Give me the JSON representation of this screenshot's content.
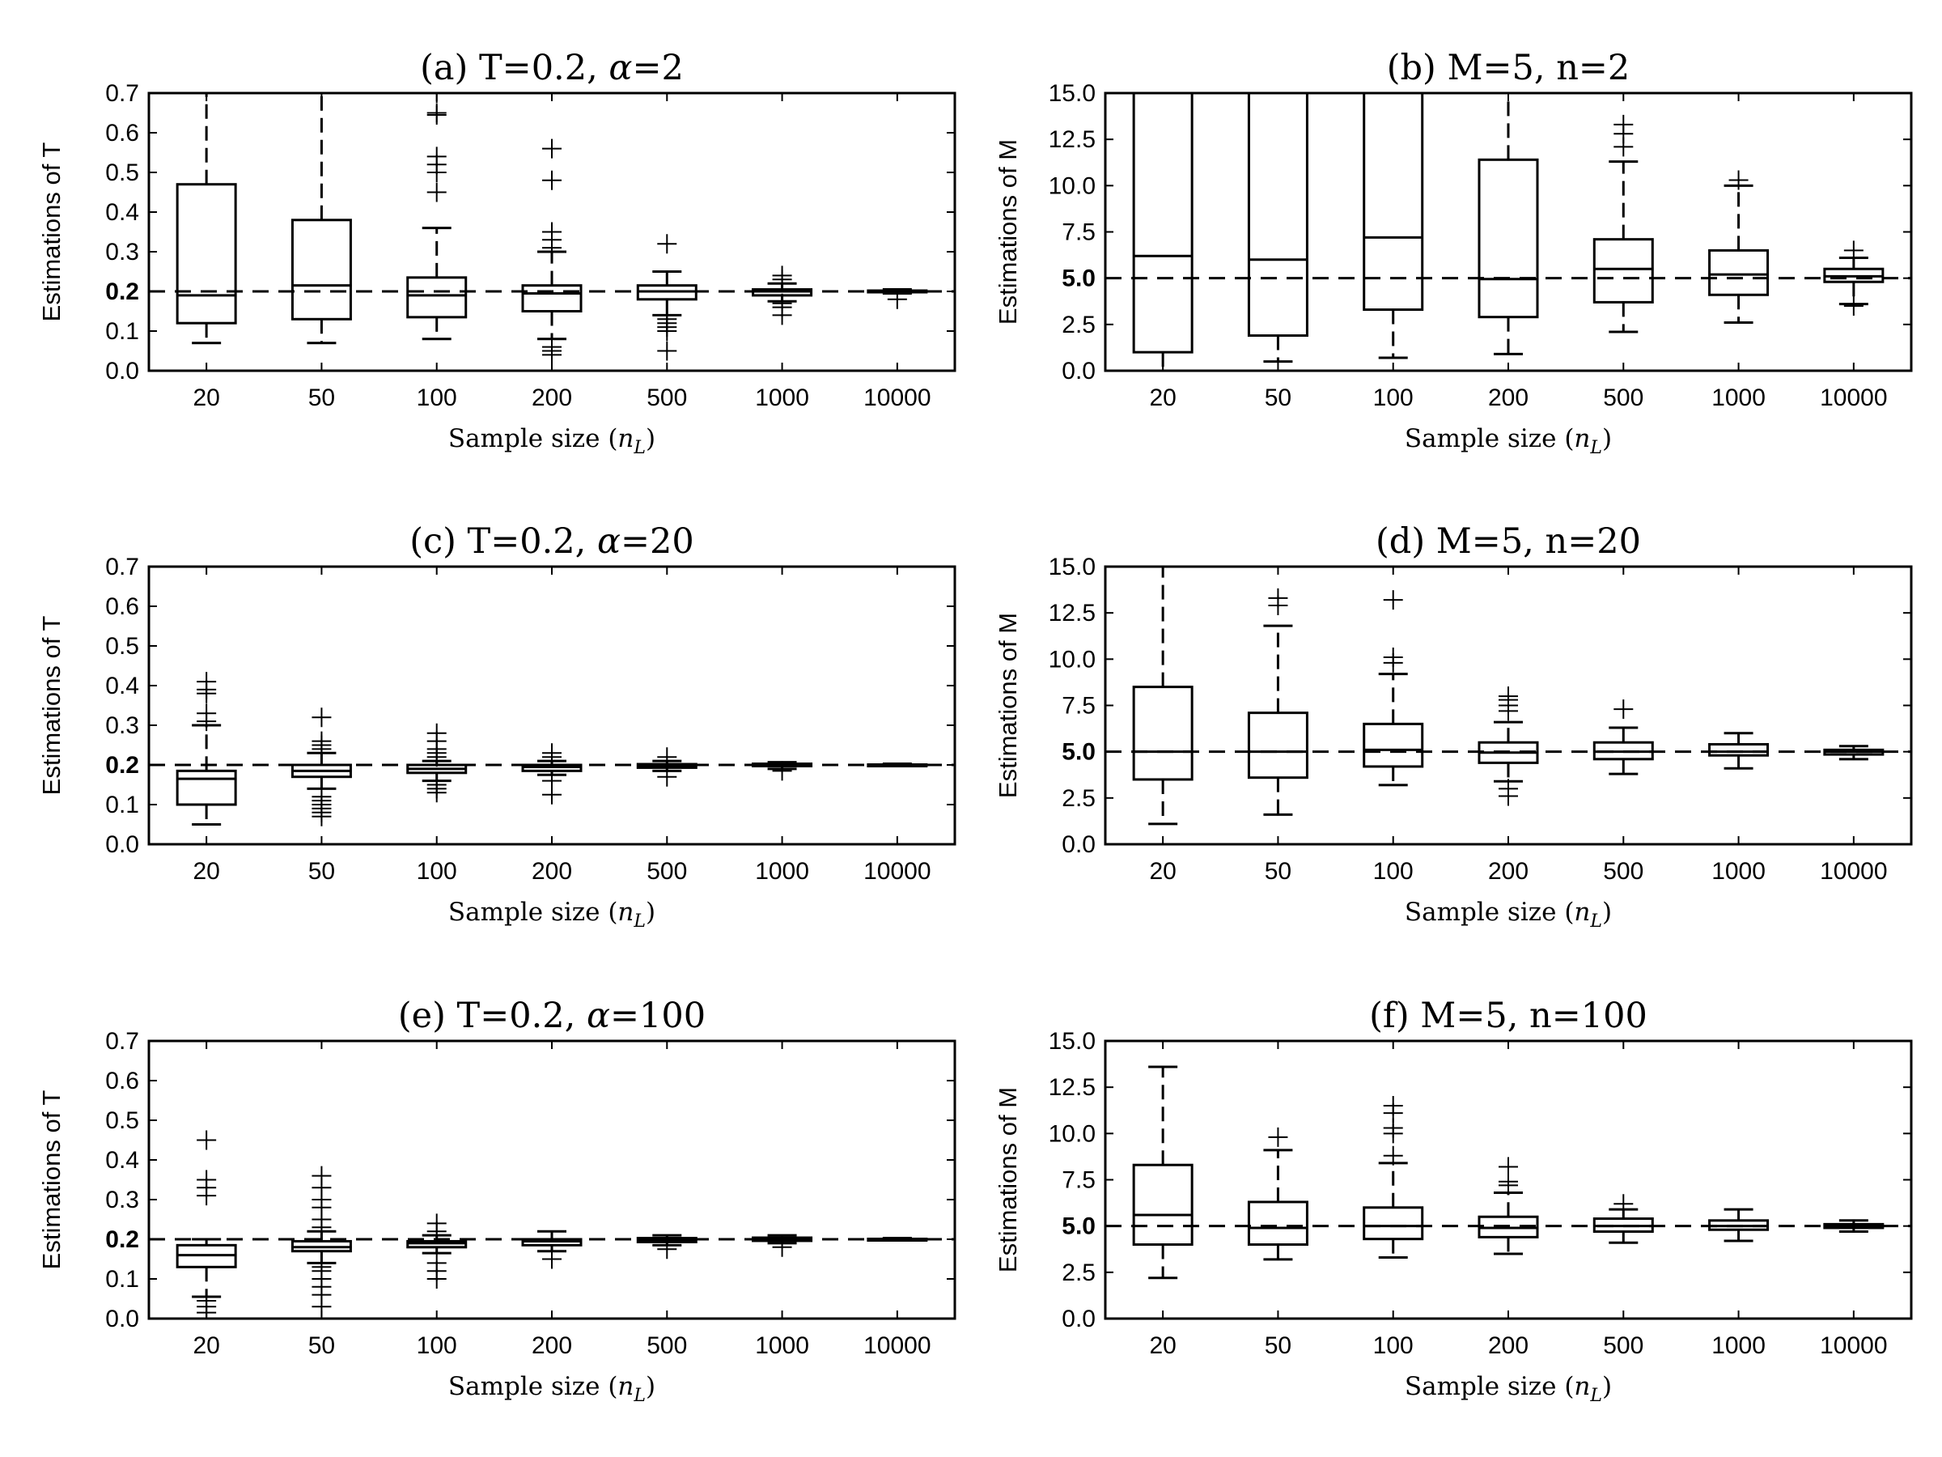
{
  "figure": {
    "x_axis_label": "Sample size (n_L)",
    "x_axis_label_parts": {
      "text": "Sample size (",
      "var": "n",
      "sub": "L",
      "close": ")"
    }
  },
  "chart_data": [
    {
      "id": "a",
      "type": "boxplot",
      "title": "(a) T=0.2, α=2",
      "title_parts": {
        "pre": "(a) T=0.2, ",
        "greek": "α",
        "post": "=2"
      },
      "ylabel": "Estimations of T",
      "xlabel": "Sample size (n_L)",
      "categories": [
        "20",
        "50",
        "100",
        "200",
        "500",
        "1000",
        "10000"
      ],
      "ylim": [
        0,
        0.7
      ],
      "yticks": [
        "0.0",
        "0.1",
        "0.2",
        "0.3",
        "0.4",
        "0.5",
        "0.6",
        "0.7"
      ],
      "true_value": 0.2,
      "true_value_label": "0.2",
      "boxes": [
        {
          "q1": 0.12,
          "median": 0.19,
          "q3": 0.47,
          "whislo": 0.07,
          "whishi": 0.7,
          "fliers": []
        },
        {
          "q1": 0.13,
          "median": 0.215,
          "q3": 0.38,
          "whislo": 0.07,
          "whishi": 0.7,
          "fliers": []
        },
        {
          "q1": 0.135,
          "median": 0.19,
          "q3": 0.235,
          "whislo": 0.08,
          "whishi": 0.36,
          "fliers": [
            0.45,
            0.5,
            0.52,
            0.54,
            0.645,
            0.65,
            0.7
          ]
        },
        {
          "q1": 0.15,
          "median": 0.195,
          "q3": 0.215,
          "whislo": 0.08,
          "whishi": 0.3,
          "fliers": [
            0.04,
            0.05,
            0.06,
            0.31,
            0.33,
            0.35,
            0.48,
            0.56
          ]
        },
        {
          "q1": 0.18,
          "median": 0.2,
          "q3": 0.215,
          "whislo": 0.14,
          "whishi": 0.25,
          "fliers": [
            0.05,
            0.1,
            0.11,
            0.12,
            0.13,
            0.32
          ]
        },
        {
          "q1": 0.19,
          "median": 0.2,
          "q3": 0.205,
          "whislo": 0.175,
          "whishi": 0.22,
          "fliers": [
            0.14,
            0.16,
            0.17,
            0.23,
            0.24
          ]
        },
        {
          "q1": 0.198,
          "median": 0.2,
          "q3": 0.202,
          "whislo": 0.195,
          "whishi": 0.205,
          "fliers": [
            0.18
          ]
        }
      ]
    },
    {
      "id": "b",
      "type": "boxplot",
      "title": "(b) M=5, n=2",
      "ylabel": "Estimations of M",
      "xlabel": "Sample size (n_L)",
      "categories": [
        "20",
        "50",
        "100",
        "200",
        "500",
        "1000",
        "10000"
      ],
      "ylim": [
        0,
        15
      ],
      "yticks": [
        "0.0",
        "2.5",
        "5.0",
        "7.5",
        "10.0",
        "12.5",
        "15.0"
      ],
      "true_value": 5,
      "true_value_label": "5.0",
      "boxes": [
        {
          "q1": 1.0,
          "median": 6.2,
          "q3": 15,
          "whislo": 0,
          "whishi": 15,
          "fliers": []
        },
        {
          "q1": 1.9,
          "median": 6.0,
          "q3": 15,
          "whislo": 0.5,
          "whishi": 15,
          "fliers": []
        },
        {
          "q1": 3.3,
          "median": 7.2,
          "q3": 15,
          "whislo": 0.7,
          "whishi": 15,
          "fliers": []
        },
        {
          "q1": 2.9,
          "median": 4.95,
          "q3": 11.4,
          "whislo": 0.9,
          "whishi": 15,
          "fliers": []
        },
        {
          "q1": 3.7,
          "median": 5.5,
          "q3": 7.1,
          "whislo": 2.1,
          "whishi": 11.3,
          "fliers": [
            12.1,
            12.8,
            13.3
          ]
        },
        {
          "q1": 4.1,
          "median": 5.2,
          "q3": 6.5,
          "whislo": 2.6,
          "whishi": 10.0,
          "fliers": [
            10.3
          ]
        },
        {
          "q1": 4.8,
          "median": 5.1,
          "q3": 5.5,
          "whislo": 3.6,
          "whishi": 6.1,
          "fliers": [
            3.5,
            6.5
          ]
        }
      ]
    },
    {
      "id": "c",
      "type": "boxplot",
      "title": "(c) T=0.2, α=20",
      "title_parts": {
        "pre": "(c) T=0.2, ",
        "greek": "α",
        "post": "=20"
      },
      "ylabel": "Estimations of T",
      "xlabel": "Sample size (n_L)",
      "categories": [
        "20",
        "50",
        "100",
        "200",
        "500",
        "1000",
        "10000"
      ],
      "ylim": [
        0,
        0.7
      ],
      "yticks": [
        "0.0",
        "0.1",
        "0.2",
        "0.3",
        "0.4",
        "0.5",
        "0.6",
        "0.7"
      ],
      "true_value": 0.2,
      "true_value_label": "0.2",
      "boxes": [
        {
          "q1": 0.1,
          "median": 0.165,
          "q3": 0.185,
          "whislo": 0.05,
          "whishi": 0.3,
          "fliers": [
            0.31,
            0.33,
            0.38,
            0.39,
            0.41
          ]
        },
        {
          "q1": 0.17,
          "median": 0.185,
          "q3": 0.2,
          "whislo": 0.14,
          "whishi": 0.23,
          "fliers": [
            0.07,
            0.08,
            0.09,
            0.1,
            0.11,
            0.12,
            0.24,
            0.25,
            0.26,
            0.32
          ]
        },
        {
          "q1": 0.18,
          "median": 0.19,
          "q3": 0.2,
          "whislo": 0.16,
          "whishi": 0.21,
          "fliers": [
            0.13,
            0.14,
            0.15,
            0.22,
            0.23,
            0.24,
            0.26,
            0.28
          ]
        },
        {
          "q1": 0.185,
          "median": 0.195,
          "q3": 0.2,
          "whislo": 0.175,
          "whishi": 0.21,
          "fliers": [
            0.125,
            0.16,
            0.22,
            0.23
          ]
        },
        {
          "q1": 0.193,
          "median": 0.198,
          "q3": 0.202,
          "whislo": 0.185,
          "whishi": 0.21,
          "fliers": [
            0.17,
            0.22
          ]
        },
        {
          "q1": 0.197,
          "median": 0.2,
          "q3": 0.203,
          "whislo": 0.19,
          "whishi": 0.207,
          "fliers": [
            0.185
          ]
        },
        {
          "q1": 0.199,
          "median": 0.2,
          "q3": 0.201,
          "whislo": 0.197,
          "whishi": 0.203,
          "fliers": []
        }
      ]
    },
    {
      "id": "d",
      "type": "boxplot",
      "title": "(d) M=5, n=20",
      "ylabel": "Estimations of M",
      "xlabel": "Sample size (n_L)",
      "categories": [
        "20",
        "50",
        "100",
        "200",
        "500",
        "1000",
        "10000"
      ],
      "ylim": [
        0,
        15
      ],
      "yticks": [
        "0.0",
        "2.5",
        "5.0",
        "7.5",
        "10.0",
        "12.5",
        "15.0"
      ],
      "true_value": 5,
      "true_value_label": "5.0",
      "boxes": [
        {
          "q1": 3.5,
          "median": 5.0,
          "q3": 8.5,
          "whislo": 1.1,
          "whishi": 15,
          "fliers": []
        },
        {
          "q1": 3.6,
          "median": 5.0,
          "q3": 7.1,
          "whislo": 1.6,
          "whishi": 11.8,
          "fliers": [
            12.9,
            13.3
          ]
        },
        {
          "q1": 4.2,
          "median": 5.1,
          "q3": 6.5,
          "whislo": 3.2,
          "whishi": 9.2,
          "fliers": [
            9.8,
            10.1,
            13.2
          ]
        },
        {
          "q1": 4.4,
          "median": 4.95,
          "q3": 5.5,
          "whislo": 3.4,
          "whishi": 6.6,
          "fliers": [
            2.6,
            3.0,
            7.2,
            7.5,
            7.8,
            8.0
          ]
        },
        {
          "q1": 4.6,
          "median": 5.0,
          "q3": 5.5,
          "whislo": 3.8,
          "whishi": 6.3,
          "fliers": [
            7.3
          ]
        },
        {
          "q1": 4.8,
          "median": 5.0,
          "q3": 5.4,
          "whislo": 4.1,
          "whishi": 6.0,
          "fliers": []
        },
        {
          "q1": 4.85,
          "median": 5.0,
          "q3": 5.1,
          "whislo": 4.6,
          "whishi": 5.3,
          "fliers": []
        }
      ]
    },
    {
      "id": "e",
      "type": "boxplot",
      "title": "(e) T=0.2, α=100",
      "title_parts": {
        "pre": "(e) T=0.2, ",
        "greek": "α",
        "post": "=100"
      },
      "ylabel": "Estimations of T",
      "xlabel": "Sample size (n_L)",
      "categories": [
        "20",
        "50",
        "100",
        "200",
        "500",
        "1000",
        "10000"
      ],
      "ylim": [
        0,
        0.7
      ],
      "yticks": [
        "0.0",
        "0.1",
        "0.2",
        "0.3",
        "0.4",
        "0.5",
        "0.6",
        "0.7"
      ],
      "true_value": 0.2,
      "true_value_label": "0.2",
      "boxes": [
        {
          "q1": 0.13,
          "median": 0.16,
          "q3": 0.185,
          "whislo": 0.055,
          "whishi": 0.2,
          "fliers": [
            0.015,
            0.03,
            0.045,
            0.31,
            0.33,
            0.35,
            0.45
          ]
        },
        {
          "q1": 0.17,
          "median": 0.18,
          "q3": 0.195,
          "whislo": 0.14,
          "whishi": 0.22,
          "fliers": [
            0.03,
            0.06,
            0.08,
            0.1,
            0.12,
            0.13,
            0.23,
            0.25,
            0.28,
            0.3,
            0.33,
            0.36
          ]
        },
        {
          "q1": 0.18,
          "median": 0.19,
          "q3": 0.195,
          "whislo": 0.165,
          "whishi": 0.21,
          "fliers": [
            0.1,
            0.12,
            0.14,
            0.22,
            0.24
          ]
        },
        {
          "q1": 0.185,
          "median": 0.195,
          "q3": 0.2,
          "whislo": 0.17,
          "whishi": 0.22,
          "fliers": [
            0.15
          ]
        },
        {
          "q1": 0.193,
          "median": 0.198,
          "q3": 0.203,
          "whislo": 0.185,
          "whishi": 0.21,
          "fliers": [
            0.175
          ]
        },
        {
          "q1": 0.196,
          "median": 0.2,
          "q3": 0.204,
          "whislo": 0.19,
          "whishi": 0.21,
          "fliers": [
            0.18
          ]
        },
        {
          "q1": 0.199,
          "median": 0.2,
          "q3": 0.201,
          "whislo": 0.197,
          "whishi": 0.203,
          "fliers": []
        }
      ]
    },
    {
      "id": "f",
      "type": "boxplot",
      "title": "(f) M=5, n=100",
      "ylabel": "Estimations of M",
      "xlabel": "Sample size (n_L)",
      "categories": [
        "20",
        "50",
        "100",
        "200",
        "500",
        "1000",
        "10000"
      ],
      "ylim": [
        0,
        15
      ],
      "yticks": [
        "0.0",
        "2.5",
        "5.0",
        "7.5",
        "10.0",
        "12.5",
        "15.0"
      ],
      "true_value": 5,
      "true_value_label": "5.0",
      "boxes": [
        {
          "q1": 4.0,
          "median": 5.6,
          "q3": 8.3,
          "whislo": 2.2,
          "whishi": 13.6,
          "fliers": []
        },
        {
          "q1": 4.0,
          "median": 4.9,
          "q3": 6.3,
          "whislo": 3.2,
          "whishi": 9.1,
          "fliers": [
            9.8
          ]
        },
        {
          "q1": 4.3,
          "median": 5.0,
          "q3": 6.0,
          "whislo": 3.3,
          "whishi": 8.4,
          "fliers": [
            8.8,
            10.0,
            10.3,
            11.1,
            11.5
          ]
        },
        {
          "q1": 4.4,
          "median": 4.9,
          "q3": 5.5,
          "whislo": 3.5,
          "whishi": 6.8,
          "fliers": [
            7.2,
            7.4,
            8.2
          ]
        },
        {
          "q1": 4.7,
          "median": 5.0,
          "q3": 5.4,
          "whislo": 4.1,
          "whishi": 5.9,
          "fliers": [
            6.2
          ]
        },
        {
          "q1": 4.8,
          "median": 5.0,
          "q3": 5.3,
          "whislo": 4.2,
          "whishi": 5.9,
          "fliers": []
        },
        {
          "q1": 4.9,
          "median": 5.0,
          "q3": 5.1,
          "whislo": 4.7,
          "whishi": 5.3,
          "fliers": []
        }
      ]
    }
  ]
}
